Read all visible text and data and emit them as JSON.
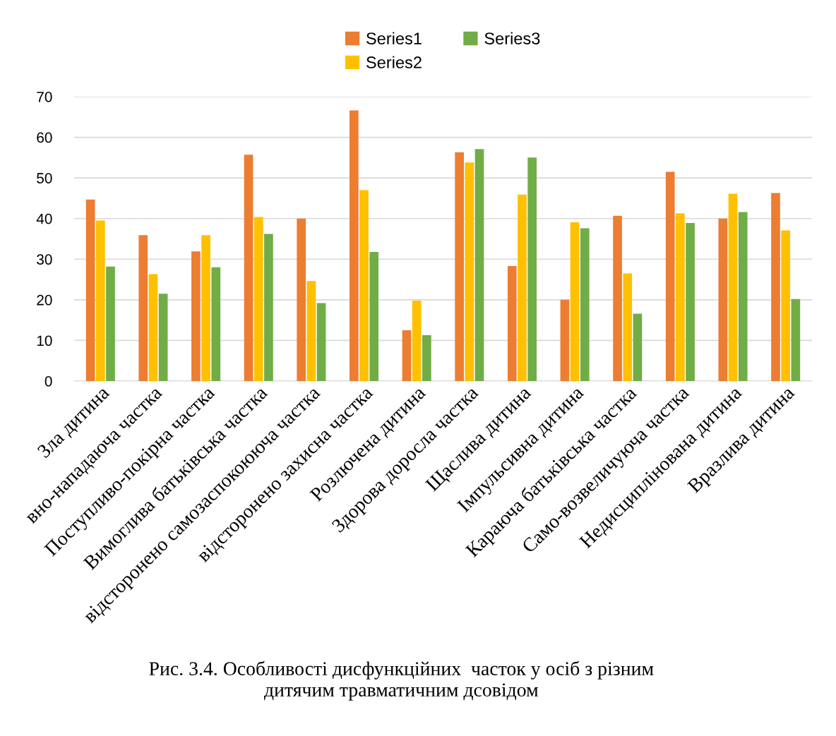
{
  "chart_data": {
    "type": "bar",
    "categories": [
      "Зла дитина",
      "вно-нападаюча частка",
      "Поступливо-покірна частка",
      "Вимоглива батьківська частка",
      "відсторонено самозаспокоююча частка",
      "відсторонено захисна частка",
      "Розлючена дитина",
      "Здорова доросла частка",
      "Щаслива дитина",
      "Імпульсивна дитина",
      "Караюча батьківська частка",
      "Само-возвеличуюча частка",
      "Недисциплінована дитина",
      "Вразлива дитина"
    ],
    "series": [
      {
        "name": "Series1",
        "color": "#ed7d31",
        "values": [
          44.7,
          35.9,
          31.9,
          55.7,
          40,
          66.6,
          12.5,
          56.3,
          28.3,
          20,
          40.7,
          51.5,
          40,
          46.3
        ]
      },
      {
        "name": "Series2",
        "color": "#ffc000",
        "values": [
          39.5,
          26.3,
          35.9,
          40.4,
          24.6,
          47,
          19.8,
          53.8,
          45.9,
          39.1,
          26.5,
          41.3,
          46.1,
          37.1
        ]
      },
      {
        "name": "Series3",
        "color": "#70ad47",
        "values": [
          28.2,
          21.5,
          28,
          36.2,
          19.2,
          31.8,
          11.3,
          57.1,
          55,
          37.6,
          16.6,
          38.9,
          41.6,
          20.2
        ]
      }
    ],
    "ylim": [
      0,
      70
    ],
    "yticks": [
      0,
      10,
      20,
      30,
      40,
      50,
      60,
      70
    ],
    "grid": "y",
    "legend": "top",
    "annotations": [
      "Рис. 3.4. Особливості дисфункційних  часток у осіб з різним\nдитячим травматичним дсовідом"
    ]
  }
}
